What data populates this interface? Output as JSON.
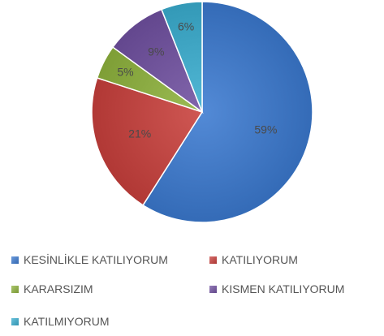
{
  "chart_data": {
    "type": "pie",
    "title": "",
    "categories": [
      "KESİNLİKLE KATILIYORUM",
      "KATILIYORUM",
      "KARARSIZIM",
      "KISMEN KATILIYORUM",
      "KATILMIYORUM"
    ],
    "values": [
      59,
      21,
      5,
      9,
      6
    ],
    "data_labels": [
      "59%",
      "21%",
      "5%",
      "9%",
      "6%"
    ],
    "colors": [
      "#3b7ad0",
      "#c9403c",
      "#8fb33d",
      "#7151a1",
      "#3aaed0"
    ],
    "legend_position": "bottom",
    "start_angle": "12 o'clock",
    "direction": "clockwise"
  }
}
